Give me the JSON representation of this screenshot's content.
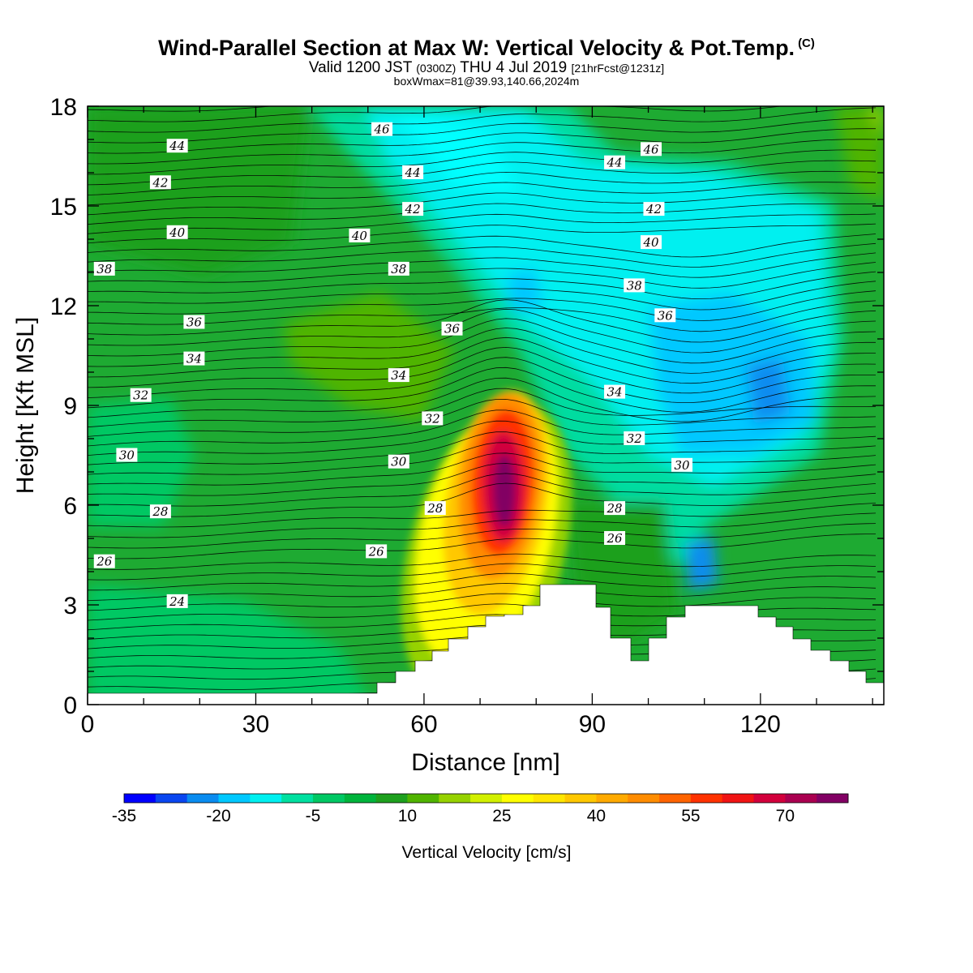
{
  "header": {
    "title": "Wind-Parallel Section at Max W: Vertical Velocity & Pot.Temp.",
    "title_mark": "(C)",
    "valid_prefix": "Valid 1200 JST",
    "valid_zulu": "(0300Z)",
    "valid_date": "THU 4 Jul 2019",
    "forecast": "[21hrFcst@1231z]",
    "box_info": "boxWmax=81@39.93,140.66,2024m"
  },
  "chart_data": {
    "type": "heatmap",
    "xlabel": "Distance [nm]",
    "ylabel": "Height [Kft MSL]",
    "xlim": [
      0,
      142
    ],
    "ylim": [
      0,
      18
    ],
    "x_ticks": [
      0,
      30,
      60,
      90,
      120
    ],
    "y_ticks": [
      0,
      3,
      6,
      9,
      12,
      15,
      18
    ],
    "x_tick_labels": [
      "0",
      "30",
      "60",
      "90",
      "120"
    ],
    "y_tick_labels": [
      "0",
      "3",
      "6",
      "9",
      "12",
      "15",
      "18"
    ],
    "grid": false,
    "colorbar": {
      "title": "Vertical Velocity [cm/s]",
      "min": -35,
      "max": 80,
      "step": 5,
      "labels": [
        "-35",
        "-20",
        "-5",
        "10",
        "25",
        "40",
        "55",
        "70"
      ],
      "label_values": [
        -35,
        -20,
        -5,
        10,
        25,
        40,
        55,
        70
      ],
      "colors": [
        "#0000ff",
        "#0a46f0",
        "#0a8cf0",
        "#00c8ff",
        "#00f0f0",
        "#00e0a0",
        "#00c864",
        "#00b43c",
        "#1ea01e",
        "#50b400",
        "#96d200",
        "#d2f000",
        "#ffff00",
        "#ffe600",
        "#ffc800",
        "#ffaa00",
        "#ff8c00",
        "#ff6400",
        "#ff3200",
        "#f01414",
        "#d2003c",
        "#aa0050",
        "#820064"
      ]
    },
    "max_w": {
      "x": 74.5,
      "y": 6.0,
      "value": 81
    },
    "theta_labels": [
      {
        "text": "46",
        "x": 52.5,
        "y": 17.3
      },
      {
        "text": "44",
        "x": 16,
        "y": 16.8
      },
      {
        "text": "44",
        "x": 58,
        "y": 16.0
      },
      {
        "text": "44",
        "x": 94,
        "y": 16.3
      },
      {
        "text": "46",
        "x": 100.5,
        "y": 16.7
      },
      {
        "text": "42",
        "x": 13,
        "y": 15.7
      },
      {
        "text": "42",
        "x": 58,
        "y": 14.9
      },
      {
        "text": "42",
        "x": 101,
        "y": 14.9
      },
      {
        "text": "40",
        "x": 16,
        "y": 14.2
      },
      {
        "text": "40",
        "x": 48.5,
        "y": 14.1
      },
      {
        "text": "40",
        "x": 100.5,
        "y": 13.9
      },
      {
        "text": "38",
        "x": 3,
        "y": 13.1
      },
      {
        "text": "38",
        "x": 55.5,
        "y": 13.1
      },
      {
        "text": "38",
        "x": 97.5,
        "y": 12.6
      },
      {
        "text": "36",
        "x": 19,
        "y": 11.5
      },
      {
        "text": "36",
        "x": 65,
        "y": 11.3
      },
      {
        "text": "36",
        "x": 103,
        "y": 11.7
      },
      {
        "text": "34",
        "x": 19,
        "y": 10.4
      },
      {
        "text": "34",
        "x": 55.5,
        "y": 9.9
      },
      {
        "text": "34",
        "x": 94,
        "y": 9.4
      },
      {
        "text": "32",
        "x": 9.5,
        "y": 9.3
      },
      {
        "text": "32",
        "x": 61.5,
        "y": 8.6
      },
      {
        "text": "32",
        "x": 97.5,
        "y": 8.0
      },
      {
        "text": "30",
        "x": 7,
        "y": 7.5
      },
      {
        "text": "30",
        "x": 55.5,
        "y": 7.3
      },
      {
        "text": "30",
        "x": 106,
        "y": 7.2
      },
      {
        "text": "28",
        "x": 13,
        "y": 5.8
      },
      {
        "text": "28",
        "x": 62,
        "y": 5.9
      },
      {
        "text": "28",
        "x": 94,
        "y": 5.9
      },
      {
        "text": "26",
        "x": 3,
        "y": 4.3
      },
      {
        "text": "26",
        "x": 51.5,
        "y": 4.6
      },
      {
        "text": "26",
        "x": 94,
        "y": 5.0
      },
      {
        "text": "24",
        "x": 16,
        "y": 3.1
      }
    ]
  }
}
